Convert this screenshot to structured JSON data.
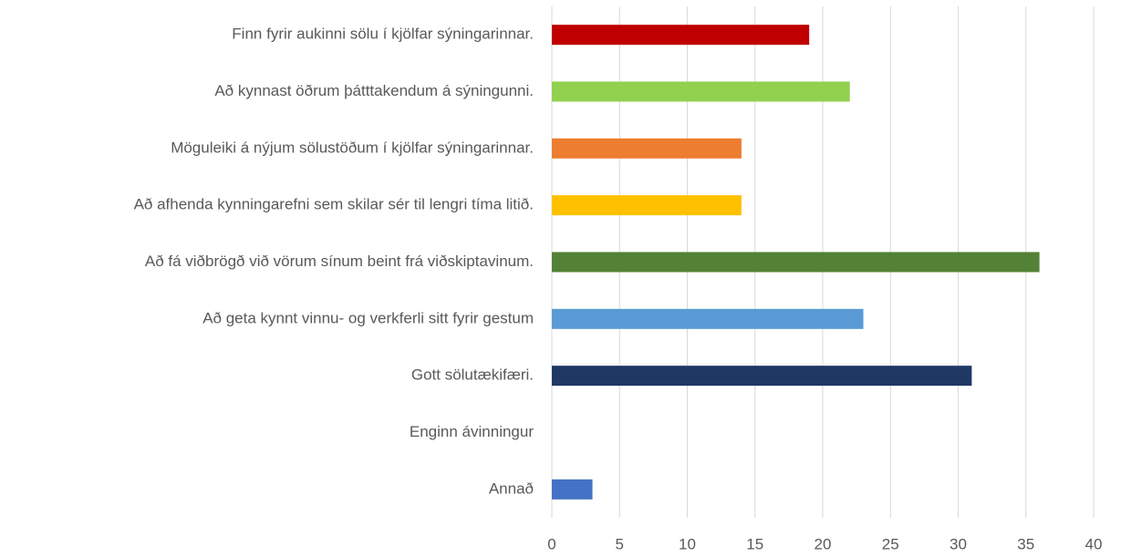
{
  "chart_data": {
    "type": "bar",
    "categories": [
      "Finn fyrir aukinni sölu í kjölfar sýningarinnar.",
      "Að kynnast öðrum þátttakendum á sýningunni.",
      "Möguleiki á nýjum sölustöðum í kjölfar sýningarinnar.",
      "Að afhenda kynningarefni sem skilar sér til lengri tíma litið.",
      "Að fá viðbrögð við vörum sínum beint frá viðskiptavinum.",
      "Að geta kynnt vinnu- og verkferli sitt fyrir gestum",
      "Gott sölutækifæri.",
      "Enginn ávinningur",
      "Annað"
    ],
    "values": [
      19,
      22,
      14,
      14,
      36,
      23,
      31,
      0,
      3
    ],
    "colors": [
      "#c00000",
      "#92d050",
      "#ed7d31",
      "#ffc000",
      "#538135",
      "#5b9bd5",
      "#203864",
      "#4472c4",
      "#4472c4"
    ],
    "orientation": "horizontal",
    "xlim": [
      0,
      40
    ],
    "xticks": [
      0,
      5,
      10,
      15,
      20,
      25,
      30,
      35,
      40
    ],
    "grid": true
  }
}
